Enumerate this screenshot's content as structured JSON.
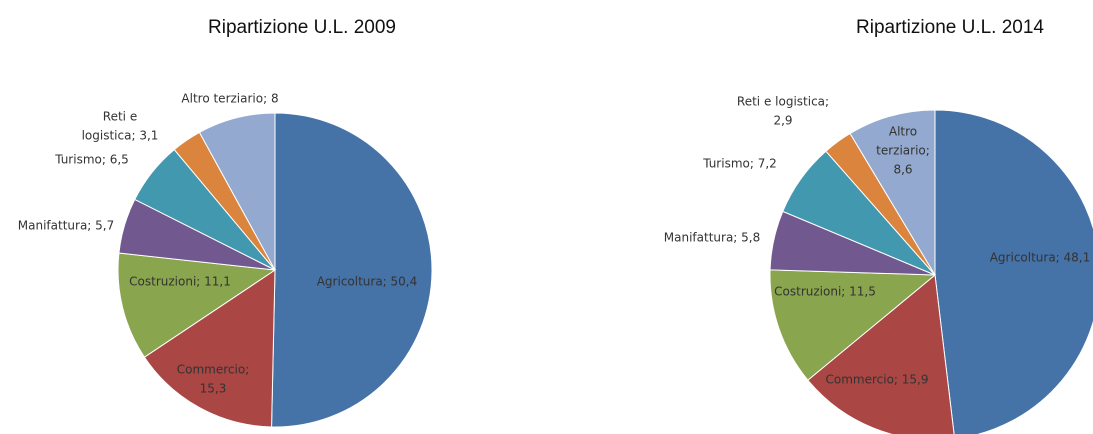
{
  "chart_data": [
    {
      "type": "pie",
      "title": "Ripartizione U.L. 2009",
      "values": [
        50.4,
        15.3,
        11.1,
        5.7,
        6.5,
        3.1,
        8
      ],
      "value_labels": [
        [
          "Agricoltura; 50,4"
        ],
        [
          "Commercio;",
          "15,3"
        ],
        [
          "Costruzioni; 11,1"
        ],
        [
          "Manifattura; 5,7"
        ],
        [
          "Turismo; 6,5"
        ],
        [
          "Reti e",
          "logistica; 3,1"
        ],
        [
          "Altro terziario; 8"
        ]
      ],
      "colors": [
        "#4572a7",
        "#aa4643",
        "#89a54e",
        "#71588f",
        "#4198af",
        "#db843d",
        "#93a9cf"
      ]
    },
    {
      "type": "pie",
      "title": "Ripartizione U.L. 2014",
      "values": [
        48.1,
        15.9,
        11.5,
        5.8,
        7.2,
        2.9,
        8.6
      ],
      "value_labels": [
        [
          "Agricoltura; 48,1"
        ],
        [
          "Commercio; 15,9"
        ],
        [
          "Costruzioni; 11,5"
        ],
        [
          "Manifattura; 5,8"
        ],
        [
          "Turismo; 7,2"
        ],
        [
          "Reti e logistica;",
          "2,9"
        ],
        [
          "Altro",
          "terziario;",
          "8,6"
        ]
      ],
      "colors": [
        "#4572a7",
        "#aa4643",
        "#89a54e",
        "#71588f",
        "#4198af",
        "#db843d",
        "#93a9cf"
      ]
    }
  ]
}
